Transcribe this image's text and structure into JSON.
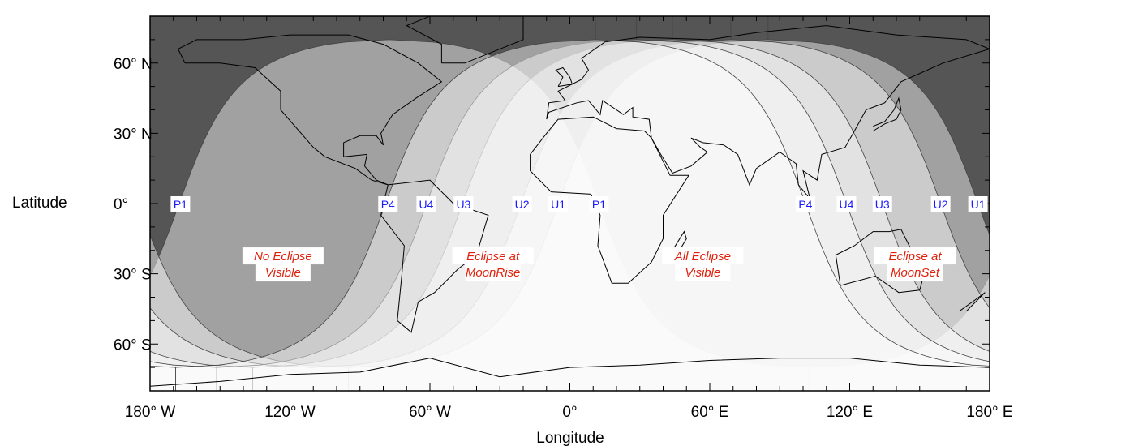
{
  "chart_data": {
    "type": "map",
    "projection": "equirectangular",
    "xlabel": "Longitude",
    "ylabel": "Latitude",
    "xlim": [
      -180,
      180
    ],
    "ylim": [
      -80,
      80
    ],
    "x_ticks": [
      {
        "value": -180,
        "label": "180° W"
      },
      {
        "value": -120,
        "label": "120° W"
      },
      {
        "value": -60,
        "label": "60° W"
      },
      {
        "value": 0,
        "label": "0°"
      },
      {
        "value": 60,
        "label": "60° E"
      },
      {
        "value": 120,
        "label": "120° E"
      },
      {
        "value": 180,
        "label": "180° E"
      }
    ],
    "y_ticks": [
      {
        "value": 60,
        "label": "60° N"
      },
      {
        "value": 30,
        "label": "30° N"
      },
      {
        "value": 0,
        "label": "0°"
      },
      {
        "value": -30,
        "label": "30° S"
      },
      {
        "value": -60,
        "label": "60° S"
      }
    ],
    "contacts": [
      {
        "label": "P1",
        "equator_crossings_lon": [
          -167,
          12.5
        ]
      },
      {
        "label": "U1",
        "equator_crossings_lon": [
          -5,
          175
        ]
      },
      {
        "label": "U2",
        "equator_crossings_lon": [
          -20.5,
          159
        ]
      },
      {
        "label": "U3",
        "equator_crossings_lon": [
          -45.6,
          134
        ]
      },
      {
        "label": "U4",
        "equator_crossings_lon": [
          -61.6,
          118.6
        ]
      },
      {
        "label": "P4",
        "equator_crossings_lon": [
          -78,
          101
        ]
      }
    ],
    "regions": [
      {
        "line1": "No Eclipse",
        "line2": "Visible",
        "lon": -123,
        "lat": -26
      },
      {
        "line1": "Eclipse at",
        "line2": "MoonRise",
        "lon": -33,
        "lat": -26
      },
      {
        "line1": "All Eclipse",
        "line2": "Visible",
        "lon": 57,
        "lat": -26
      },
      {
        "line1": "Eclipse at",
        "line2": "MoonSet",
        "lon": 148,
        "lat": -26
      }
    ],
    "colors": {
      "no_eclipse": "#555555",
      "all_visible": "#ffffff",
      "contact_label": "#1a1aff",
      "region_label": "#e0200c"
    }
  }
}
